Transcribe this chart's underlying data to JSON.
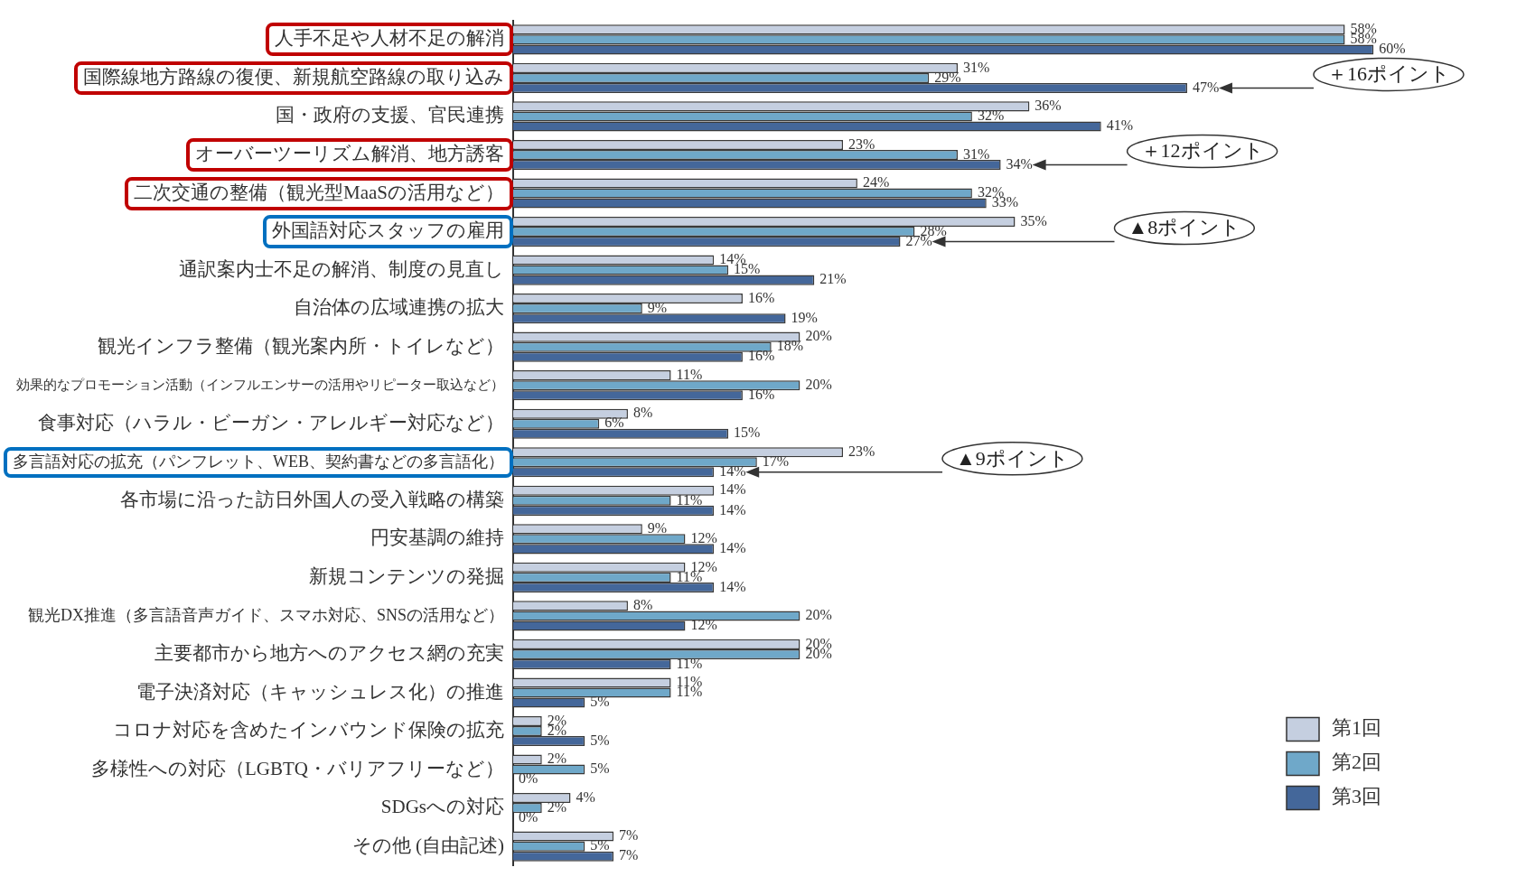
{
  "chart_data": {
    "type": "bar",
    "orientation": "horizontal",
    "legend": "bottom right",
    "categories": [
      "人手不足や人材不足の解消",
      "国際線地方路線の復便、新規航空路線の取り込み",
      "国・政府の支援、官民連携",
      "オーバーツーリズム解消、地方誘客",
      "二次交通の整備（観光型MaaSの活用など）",
      "外国語対応スタッフの雇用",
      "通訳案内士不足の解消、制度の見直し",
      "自治体の広域連携の拡大",
      "観光インフラ整備（観光案内所・トイレなど）",
      "効果的なプロモーション活動（インフルエンサーの活用やリピーター取込など）",
      "食事対応（ハラル・ビーガン・アレルギー対応など）",
      "多言語対応の拡充（パンフレット、WEB、契約書などの多言語化）",
      "各市場に沿った訪日外国人の受入戦略の構築",
      "円安基調の維持",
      "新規コンテンツの発掘",
      "観光DX推進（多言語音声ガイド、スマホ対応、SNSの活用など）",
      "主要都市から地方へのアクセス網の充実",
      "電子決済対応（キャッシュレス化）の推進",
      "コロナ対応を含めたインバウンド保険の拡充",
      "多様性への対応（LGBTQ・バリアフリーなど）",
      "SDGsへの対応",
      "その他 (自由記述)"
    ],
    "series": [
      {
        "name": "第1回",
        "color": "#c5cfe0",
        "values": [
          58,
          31,
          36,
          23,
          24,
          35,
          14,
          16,
          20,
          11,
          8,
          23,
          14,
          9,
          12,
          8,
          20,
          11,
          2,
          2,
          4,
          7
        ],
        "value_labels": [
          "58%",
          "31%",
          "36%",
          "23%",
          "24%",
          "35%",
          "14%",
          "16%",
          "20%",
          "11%",
          "8%",
          "23%",
          "14%",
          "9%",
          "12%",
          "8%",
          "20%",
          "11%",
          "2%",
          "2%",
          "4%",
          "7%"
        ]
      },
      {
        "name": "第2回",
        "color": "#6fa8c9",
        "values": [
          58,
          29,
          32,
          31,
          32,
          28,
          15,
          9,
          18,
          20,
          6,
          17,
          11,
          12,
          11,
          20,
          20,
          11,
          2,
          5,
          2,
          5
        ],
        "value_labels": [
          "58%",
          "29%",
          "32%",
          "31%",
          "32%",
          "28%",
          "15%",
          "9%",
          "18%",
          "20%",
          "6%",
          "17%",
          "11%",
          "12%",
          "11%",
          "20%",
          "20%",
          "11%",
          "2%",
          "5%",
          "2%",
          "5%"
        ]
      },
      {
        "name": "第3回",
        "color": "#44679a",
        "values": [
          60,
          47,
          41,
          34,
          33,
          27,
          21,
          19,
          16,
          16,
          15,
          14,
          14,
          14,
          14,
          12,
          11,
          5,
          5,
          0,
          0,
          7
        ],
        "value_labels": [
          "60%",
          "47%",
          "41%",
          "34%",
          "33%",
          "27%",
          "21%",
          "19%",
          "16%",
          "16%",
          "15%",
          "14%",
          "14%",
          "14%",
          "14%",
          "12%",
          "11%",
          "5%",
          "5%",
          "0%",
          "0%",
          "7%"
        ]
      }
    ],
    "annotations": [
      "＋16ポイント",
      "＋12ポイント",
      "▲8ポイント",
      "▲9ポイント"
    ]
  }
}
